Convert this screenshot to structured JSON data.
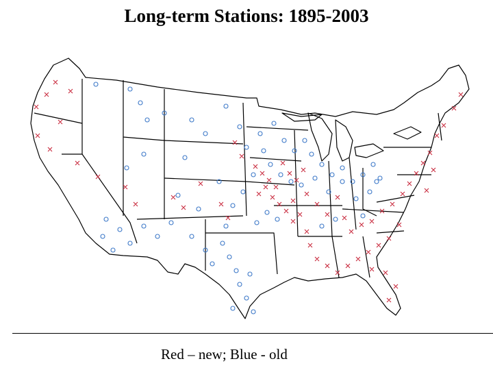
{
  "slide": {
    "title": "Long-term Stations: 1895-2003",
    "caption": "Red – new;  Blue - old"
  },
  "legend": {
    "new_color": "#c8283c",
    "old_color": "#3c78c8"
  }
}
